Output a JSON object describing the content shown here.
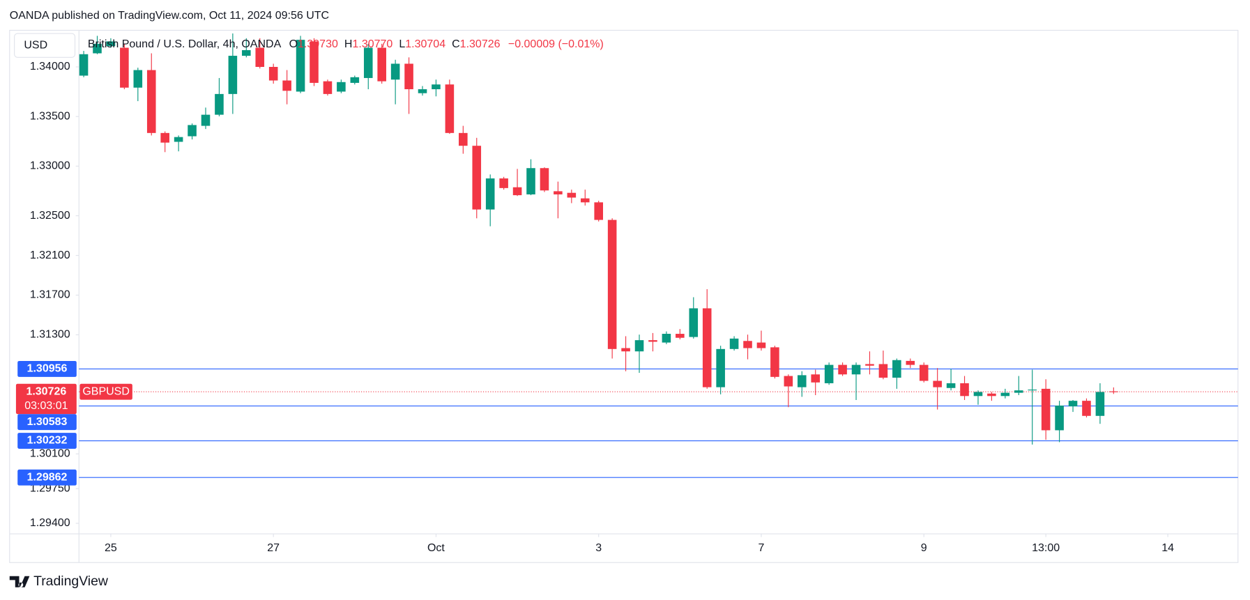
{
  "header": "OANDA published on TradingView.com, Oct 11, 2024 09:56 UTC",
  "chart_data": {
    "type": "candlestick",
    "currency": "USD",
    "title": "British Pound / U.S. Dollar, 4h, OANDA",
    "legend": {
      "o_label": "O",
      "o": "1.30730",
      "h_label": "H",
      "h": "1.30770",
      "l_label": "L",
      "l": "1.30704",
      "c_label": "C",
      "c": "1.30726",
      "change": "−0.00009 (−0.01%)"
    },
    "up_color": "#089981",
    "down_color": "#f23645",
    "candles": {
      "open": [
        1.33912,
        1.34137,
        1.34209,
        1.34193,
        1.33791,
        1.33968,
        1.33334,
        1.33245,
        1.33301,
        1.33406,
        1.33518,
        1.33727,
        1.34112,
        1.34193,
        1.34,
        1.33863,
        1.33751,
        1.34257,
        1.33855,
        1.33751,
        1.33839,
        1.33888,
        1.34193,
        1.33872,
        1.34032,
        1.33735,
        1.33775,
        1.33823,
        1.33334,
        1.33205,
        1.32563,
        1.32876,
        1.32787,
        1.32715,
        1.3298,
        1.32747,
        1.32731,
        1.32675,
        1.32635,
        1.32458,
        1.31166,
        1.31133,
        1.31246,
        1.31222,
        1.3131,
        1.31278,
        1.31567,
        1.30772,
        1.31157,
        1.31238,
        1.31222,
        1.31174,
        1.30885,
        1.30772,
        1.30901,
        1.30812,
        1.30997,
        1.30901,
        1.31005,
        1.31005,
        1.30868,
        1.31037,
        1.30997,
        1.30836,
        1.30764,
        1.30812,
        1.30683,
        1.30708,
        1.30683,
        1.30716,
        1.3074,
        1.30756,
        1.30338,
        1.30579,
        1.30635,
        1.30483,
        1.3073
      ],
      "high": [
        1.34161,
        1.34313,
        1.34289,
        1.34233,
        1.33992,
        1.34137,
        1.3335,
        1.33309,
        1.3343,
        1.3359,
        1.33888,
        1.34337,
        1.34289,
        1.34289,
        1.34032,
        1.33968,
        1.34313,
        1.34289,
        1.33872,
        1.33872,
        1.33912,
        1.34233,
        1.34233,
        1.34072,
        1.34096,
        1.33807,
        1.33872,
        1.33872,
        1.33406,
        1.33285,
        1.32916,
        1.32892,
        1.32972,
        1.33069,
        1.32988,
        1.32844,
        1.32763,
        1.32763,
        1.32651,
        1.32474,
        1.31286,
        1.31302,
        1.31318,
        1.31334,
        1.31358,
        1.31679,
        1.3176,
        1.3119,
        1.31286,
        1.31302,
        1.31342,
        1.3119,
        1.30901,
        1.30933,
        1.30949,
        1.31021,
        1.31021,
        1.31021,
        1.31133,
        1.31141,
        1.31061,
        1.31061,
        1.31021,
        1.30965,
        1.30957,
        1.30885,
        1.3074,
        1.30724,
        1.30756,
        1.30885,
        1.30949,
        1.30852,
        1.30635,
        1.30643,
        1.30659,
        1.30812,
        1.3077
      ],
      "low": [
        1.33896,
        1.34128,
        1.34193,
        1.33775,
        1.33655,
        1.33309,
        1.33141,
        1.33149,
        1.33269,
        1.33374,
        1.33502,
        1.33526,
        1.34096,
        1.33984,
        1.33831,
        1.33623,
        1.33735,
        1.33807,
        1.33711,
        1.33735,
        1.33823,
        1.33775,
        1.33831,
        1.33623,
        1.33526,
        1.33711,
        1.33703,
        1.33325,
        1.33125,
        1.32474,
        1.32394,
        1.32763,
        1.32699,
        1.32707,
        1.32739,
        1.32474,
        1.32627,
        1.32603,
        1.32442,
        1.31061,
        1.30933,
        1.30917,
        1.31133,
        1.31206,
        1.31254,
        1.31262,
        1.30756,
        1.307,
        1.31141,
        1.31053,
        1.31141,
        1.3086,
        1.30571,
        1.30675,
        1.30692,
        1.30796,
        1.30885,
        1.30643,
        1.30901,
        1.30852,
        1.30756,
        1.30965,
        1.3082,
        1.30547,
        1.3074,
        1.30643,
        1.30595,
        1.30635,
        1.30659,
        1.30692,
        1.30194,
        1.30242,
        1.30218,
        1.30523,
        1.30467,
        1.30403,
        1.30704
      ],
      "close": [
        1.34128,
        1.34233,
        1.34257,
        1.33791,
        1.33968,
        1.33334,
        1.33237,
        1.33293,
        1.33414,
        1.33518,
        1.33727,
        1.34112,
        1.34169,
        1.34,
        1.33863,
        1.33759,
        1.34273,
        1.33839,
        1.33727,
        1.33847,
        1.33896,
        1.34193,
        1.33855,
        1.34032,
        1.33775,
        1.33775,
        1.33823,
        1.33334,
        1.33205,
        1.32563,
        1.32876,
        1.32779,
        1.32707,
        1.3298,
        1.32755,
        1.32715,
        1.32683,
        1.32635,
        1.32458,
        1.31157,
        1.31133,
        1.31246,
        1.3123,
        1.3131,
        1.3127,
        1.31567,
        1.30772,
        1.31157,
        1.31262,
        1.31166,
        1.31166,
        1.30876,
        1.3078,
        1.30893,
        1.3082,
        1.30997,
        1.30901,
        1.30997,
        1.30989,
        1.30868,
        1.31045,
        1.30997,
        1.30836,
        1.30772,
        1.30812,
        1.30683,
        1.30724,
        1.30683,
        1.30716,
        1.3074,
        1.30748,
        1.30338,
        1.30587,
        1.30635,
        1.30483,
        1.30724,
        1.30726
      ]
    },
    "xlim": [
      -0.35,
      85.18
    ],
    "xticks": [
      {
        "value": 2,
        "label": "25"
      },
      {
        "value": 14,
        "label": "27"
      },
      {
        "value": 26,
        "label": "Oct"
      },
      {
        "value": 38,
        "label": "3"
      },
      {
        "value": 50,
        "label": "7"
      },
      {
        "value": 62,
        "label": "9"
      },
      {
        "value": 71,
        "label": "13:00"
      },
      {
        "value": 80,
        "label": "14"
      }
    ],
    "ylim": [
      1.2931,
      1.34353
    ],
    "yticks": [
      {
        "value": 1.294,
        "label": "1.29400"
      },
      {
        "value": 1.2975,
        "label": "1.29750"
      },
      {
        "value": 1.301,
        "label": "1.30100"
      },
      {
        "value": 1.313,
        "label": "1.31300"
      },
      {
        "value": 1.317,
        "label": "1.31700"
      },
      {
        "value": 1.321,
        "label": "1.32100"
      },
      {
        "value": 1.325,
        "label": "1.32500"
      },
      {
        "value": 1.33,
        "label": "1.33000"
      },
      {
        "value": 1.335,
        "label": "1.33500"
      },
      {
        "value": 1.34,
        "label": "1.34000"
      }
    ],
    "line_color": "#2962ff",
    "price_lines": [
      {
        "value": 1.30956,
        "label": "1.30956"
      },
      {
        "value": 1.30583,
        "label": "1.30583"
      },
      {
        "value": 1.30232,
        "label": "1.30232"
      },
      {
        "value": 1.29862,
        "label": "1.29862"
      }
    ],
    "last_price": {
      "value": 1.30726,
      "label": "1.30726",
      "symbol": "GBPUSD",
      "countdown": "03:03:01"
    }
  },
  "footer": "TradingView"
}
